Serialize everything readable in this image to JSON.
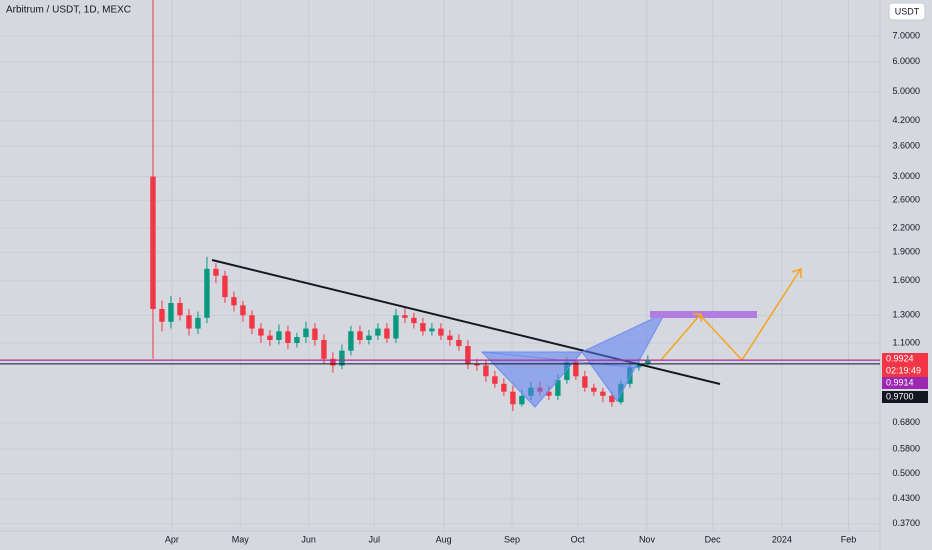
{
  "chart_data": {
    "type": "candlestick",
    "title": "Arbitrum / USDT, 1D, MEXC",
    "currency": "USDT",
    "log_scale": true,
    "up_color": "#089981",
    "down_color": "#f23645",
    "open": [
      3.0,
      1.35,
      1.25,
      1.4,
      1.3,
      1.2,
      1.28,
      1.72,
      1.65,
      1.45,
      1.38,
      1.3,
      1.2,
      1.15,
      1.12,
      1.18,
      1.1,
      1.14,
      1.2,
      1.12,
      1.0,
      0.96,
      1.05,
      1.18,
      1.12,
      1.15,
      1.2,
      1.13,
      1.3,
      1.28,
      1.24,
      1.18,
      1.2,
      1.15,
      1.12,
      1.08,
      0.97,
      0.96,
      0.9,
      0.86,
      0.82,
      0.76,
      0.8,
      0.84,
      0.82,
      0.8,
      0.88,
      0.98,
      0.9,
      0.84,
      0.82,
      0.8,
      0.77,
      0.86,
      0.95,
      0.97
    ],
    "high": [
      8.7,
      1.42,
      1.46,
      1.45,
      1.35,
      1.33,
      1.85,
      1.78,
      1.7,
      1.5,
      1.42,
      1.34,
      1.24,
      1.19,
      1.23,
      1.22,
      1.17,
      1.25,
      1.24,
      1.16,
      1.04,
      1.09,
      1.22,
      1.22,
      1.19,
      1.24,
      1.24,
      1.35,
      1.36,
      1.32,
      1.28,
      1.24,
      1.24,
      1.19,
      1.16,
      1.12,
      1.0,
      0.99,
      0.93,
      0.89,
      0.85,
      0.83,
      0.87,
      0.87,
      0.85,
      0.91,
      1.01,
      1.0,
      0.93,
      0.86,
      0.84,
      0.82,
      0.88,
      0.97,
      1.0,
      1.02
    ],
    "low": [
      1.0,
      1.18,
      1.2,
      1.26,
      1.15,
      1.16,
      1.24,
      1.58,
      1.4,
      1.33,
      1.25,
      1.16,
      1.1,
      1.08,
      1.09,
      1.06,
      1.07,
      1.1,
      1.08,
      0.97,
      0.92,
      0.94,
      1.02,
      1.09,
      1.09,
      1.12,
      1.1,
      1.1,
      1.24,
      1.2,
      1.15,
      1.15,
      1.12,
      1.08,
      1.05,
      0.94,
      0.93,
      0.87,
      0.84,
      0.8,
      0.73,
      0.75,
      0.78,
      0.8,
      0.78,
      0.78,
      0.86,
      0.88,
      0.82,
      0.8,
      0.77,
      0.75,
      0.76,
      0.84,
      0.93,
      0.96
    ],
    "close": [
      1.35,
      1.25,
      1.4,
      1.3,
      1.2,
      1.28,
      1.72,
      1.65,
      1.45,
      1.38,
      1.3,
      1.2,
      1.15,
      1.12,
      1.18,
      1.1,
      1.14,
      1.2,
      1.12,
      1.0,
      0.96,
      1.05,
      1.18,
      1.12,
      1.15,
      1.2,
      1.13,
      1.3,
      1.28,
      1.24,
      1.18,
      1.2,
      1.15,
      1.12,
      1.08,
      0.97,
      0.96,
      0.9,
      0.86,
      0.82,
      0.76,
      0.8,
      0.84,
      0.82,
      0.8,
      0.88,
      0.98,
      0.9,
      0.84,
      0.82,
      0.8,
      0.77,
      0.86,
      0.95,
      0.97,
      0.99
    ],
    "xlim": [
      -17,
      80.8
    ],
    "xticks": [
      {
        "value": 2.1,
        "label": "Apr"
      },
      {
        "value": 9.7,
        "label": "May"
      },
      {
        "value": 17.3,
        "label": "Jun"
      },
      {
        "value": 24.6,
        "label": "Jul"
      },
      {
        "value": 32.3,
        "label": "Aug"
      },
      {
        "value": 39.9,
        "label": "Sep"
      },
      {
        "value": 47.2,
        "label": "Oct"
      },
      {
        "value": 54.9,
        "label": "Nov"
      },
      {
        "value": 62.2,
        "label": "Dec"
      },
      {
        "value": 69.9,
        "label": "2024"
      },
      {
        "value": 77.3,
        "label": "Feb"
      }
    ],
    "ylim": [
      0.354,
      8.7
    ],
    "yticks": [
      {
        "value": 7,
        "label": "7.0000"
      },
      {
        "value": 6,
        "label": "6.0000"
      },
      {
        "value": 5,
        "label": "5.0000"
      },
      {
        "value": 4.2,
        "label": "4.2000"
      },
      {
        "value": 3.6,
        "label": "3.6000"
      },
      {
        "value": 3,
        "label": "3.0000"
      },
      {
        "value": 2.6,
        "label": "2.6000"
      },
      {
        "value": 2.2,
        "label": "2.2000"
      },
      {
        "value": 1.9,
        "label": "1.9000"
      },
      {
        "value": 1.6,
        "label": "1.6000"
      },
      {
        "value": 1.3,
        "label": "1.3000"
      },
      {
        "value": 1.1,
        "label": "1.1000"
      },
      {
        "value": 0.68,
        "label": "0.6800"
      },
      {
        "value": 0.58,
        "label": "0.5800"
      },
      {
        "value": 0.5,
        "label": "0.5000"
      },
      {
        "value": 0.43,
        "label": "0.4300"
      },
      {
        "value": 0.37,
        "label": "0.3700"
      }
    ],
    "price_lines": [
      {
        "value": 0.9924,
        "label": "0.9924",
        "color": "#f23645"
      },
      {
        "value": 0.9914,
        "label": "0.9914",
        "color": "#9c27b0"
      },
      {
        "value": 0.97,
        "label": "0.9700",
        "color": "#131722"
      }
    ],
    "countdown": "02:19:49"
  }
}
